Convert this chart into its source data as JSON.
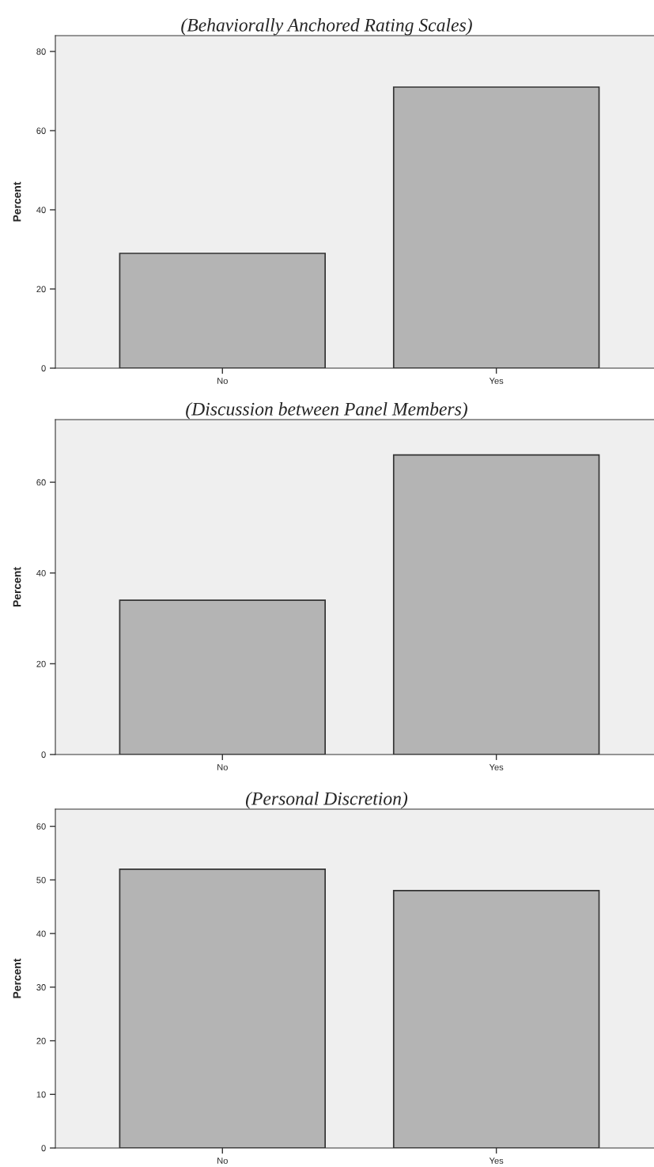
{
  "chart_data": [
    {
      "type": "bar",
      "title": "(Behaviorally Anchored Rating Scales)",
      "ylabel": "Percent",
      "categories": [
        "No",
        "Yes"
      ],
      "values": [
        29,
        71
      ],
      "color": "#b4b4b4",
      "ylim": [
        0,
        84
      ],
      "yticks": [
        0,
        20,
        40,
        60,
        80
      ],
      "grid": false
    },
    {
      "type": "bar",
      "title": "(Discussion between Panel Members)",
      "ylabel": "Percent",
      "categories": [
        "No",
        "Yes"
      ],
      "values": [
        34,
        66
      ],
      "color": "#b4b4b4",
      "ylim": [
        0,
        73.8
      ],
      "yticks": [
        0,
        20,
        40,
        60
      ],
      "grid": false
    },
    {
      "type": "bar",
      "title": "(Personal Discretion)",
      "ylabel": "Percent",
      "categories": [
        "No",
        "Yes"
      ],
      "values": [
        52,
        48
      ],
      "color": "#b4b4b4",
      "ylim": [
        0,
        63.2
      ],
      "yticks": [
        0,
        10,
        20,
        30,
        40,
        50,
        60
      ],
      "grid": false
    }
  ]
}
